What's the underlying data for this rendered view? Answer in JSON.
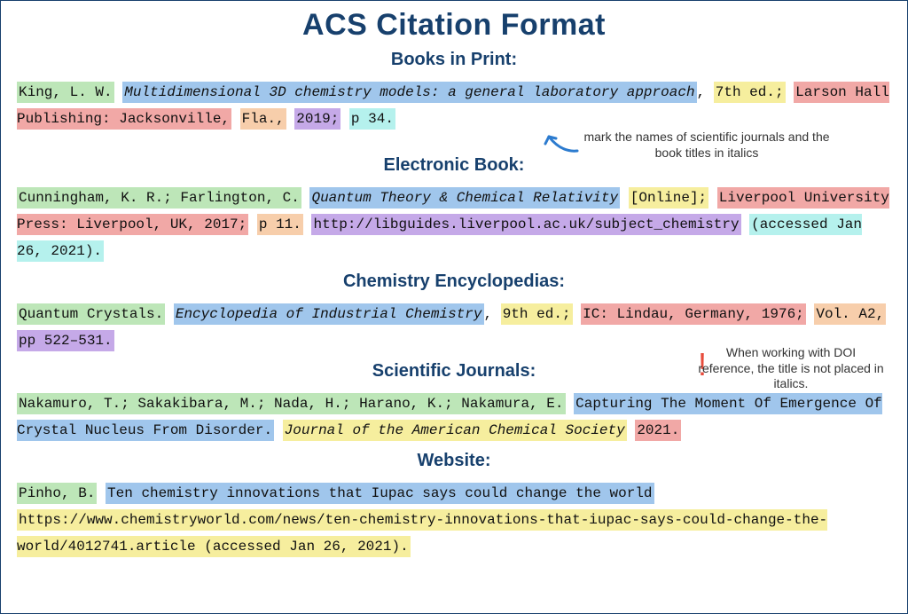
{
  "colors": {
    "green": "#bde6b8",
    "blue": "#a0c6ec",
    "yellow": "#f6ee9e",
    "red": "#f1a8a6",
    "orange": "#f7ceab",
    "purple": "#c5a9e8",
    "cyan": "#b5f1ed",
    "title": "#17406d",
    "arrow": "#2c7bcf"
  },
  "mainTitle": "ACS Citation Format",
  "annot1": "mark the names of scientific journals and the book titles in italics",
  "annot2": "When working with DOI reference, the title is not placed in italics.",
  "sec1": "Books in Print:",
  "sec2": "Electronic Book:",
  "sec3": "Chemistry Encyclopedias:",
  "sec4": "Scientific Journals:",
  "sec5": "Website:",
  "books": [
    {
      "t": "King, L. W.",
      "c": "green"
    },
    {
      "t": " "
    },
    {
      "t": "Multidimensional 3D chemistry models: a general laboratory approach",
      "c": "blue",
      "it": true
    },
    {
      "t": ", "
    },
    {
      "t": "7th ed.;",
      "c": "yellow"
    },
    {
      "t": " "
    },
    {
      "t": "Larson Hall Publishing: Jacksonville,",
      "c": "red"
    },
    {
      "t": " "
    },
    {
      "t": "Fla.,",
      "c": "orange"
    },
    {
      "t": " "
    },
    {
      "t": "2019;",
      "c": "purple"
    },
    {
      "t": " "
    },
    {
      "t": "p 34.",
      "c": "cyan"
    }
  ],
  "ebook": [
    {
      "t": "Cunningham, K. R.; Farlington, C.",
      "c": "green"
    },
    {
      "t": " "
    },
    {
      "t": "Quantum Theory & Chemical Relativity",
      "c": "blue",
      "it": true
    },
    {
      "t": " "
    },
    {
      "t": "[Online];",
      "c": "yellow"
    },
    {
      "t": " "
    },
    {
      "t": "Liverpool University Press: Liverpool, UK, 2017;",
      "c": "red"
    },
    {
      "t": " "
    },
    {
      "t": "p 11.",
      "c": "orange"
    },
    {
      "t": " "
    },
    {
      "t": "http://libguides.liverpool.ac.uk/subject_chemistry",
      "c": "purple"
    },
    {
      "t": " "
    },
    {
      "t": "(accessed Jan 26, 2021).",
      "c": "cyan"
    }
  ],
  "encyc": [
    {
      "t": "Quantum Crystals.",
      "c": "green"
    },
    {
      "t": " "
    },
    {
      "t": "Encyclopedia of Industrial Chemistry",
      "c": "blue",
      "it": true
    },
    {
      "t": ", "
    },
    {
      "t": "9th ed.;",
      "c": "yellow"
    },
    {
      "t": " "
    },
    {
      "t": "IC: Lindau, Germany, 1976;",
      "c": "red"
    },
    {
      "t": " "
    },
    {
      "t": "Vol. A2,",
      "c": "orange"
    },
    {
      "t": " "
    },
    {
      "t": "pp 522–531.",
      "c": "purple"
    }
  ],
  "journal": [
    {
      "t": "Nakamuro, T.; Sakakibara, M.; Nada, H.; Harano, K.; Nakamura, E.",
      "c": "green"
    },
    {
      "t": " "
    },
    {
      "t": "Capturing The Moment Of Emergence Of Crystal Nucleus From Disorder.",
      "c": "blue"
    },
    {
      "t": " "
    },
    {
      "t": "Journal of the American Chemical Society",
      "c": "yellow",
      "it": true
    },
    {
      "t": " "
    },
    {
      "t": "2021.",
      "c": "red"
    }
  ],
  "website": [
    {
      "t": "Pinho, B.",
      "c": "green"
    },
    {
      "t": " "
    },
    {
      "t": "Ten chemistry innovations that Iupac says could change the world",
      "c": "blue"
    },
    {
      "t": " "
    },
    {
      "t": "https://www.chemistryworld.com/news/ten-chemistry-innovations-that-iupac-says-could-change-the-world/4012741.article (accessed Jan 26, 2021).",
      "c": "yellow"
    }
  ]
}
